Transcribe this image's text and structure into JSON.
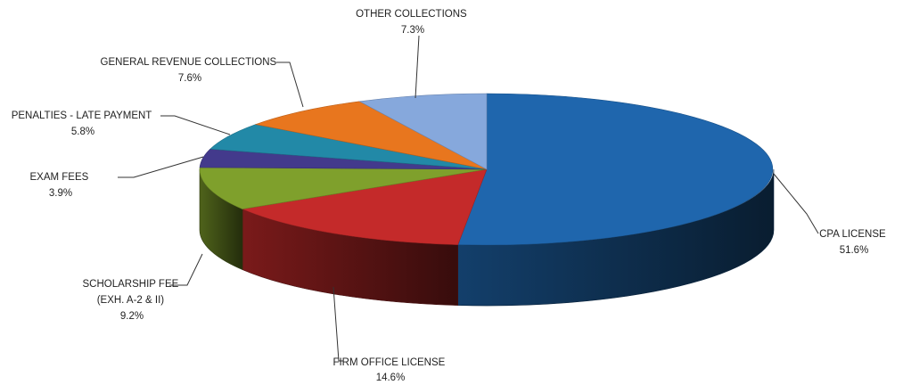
{
  "chart_data": {
    "type": "pie",
    "title": "",
    "three_d": true,
    "legend": "none",
    "slices": [
      {
        "label": "CPA LICENSE",
        "value": 51.6,
        "display": "51.6%",
        "color": "#1f66ad"
      },
      {
        "label": "FIRM OFFICE LICENSE",
        "value": 14.6,
        "display": "14.6%",
        "color": "#c42a2a"
      },
      {
        "label": "SCHOLARSHIP FEE",
        "label2": "(EXH. A-2 & II)",
        "value": 9.2,
        "display": "9.2%",
        "color": "#7fa02c"
      },
      {
        "label": "EXAM FEES",
        "value": 3.9,
        "display": "3.9%",
        "color": "#433a8c"
      },
      {
        "label": "PENALTIES - LATE PAYMENT",
        "value": 5.8,
        "display": "5.8%",
        "color": "#2289a7"
      },
      {
        "label": "GENERAL REVENUE COLLECTIONS",
        "value": 7.6,
        "display": "7.6%",
        "color": "#e8761e"
      },
      {
        "label": "OTHER COLLECTIONS",
        "value": 7.3,
        "display": "7.3%",
        "color": "#86a8dc"
      }
    ]
  }
}
